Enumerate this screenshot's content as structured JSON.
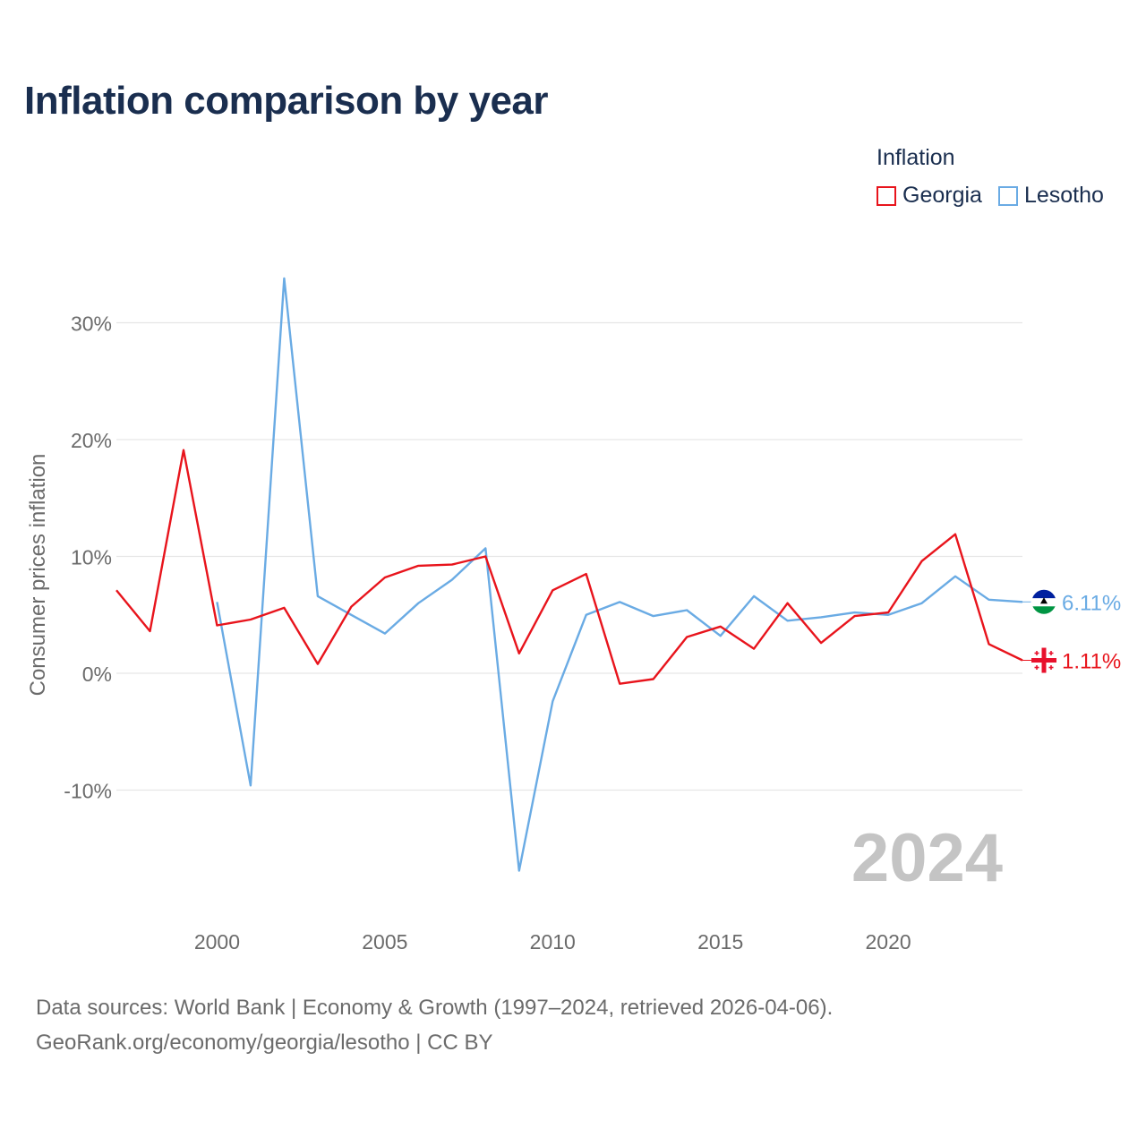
{
  "title": "Inflation comparison by year",
  "legend": {
    "title": "Inflation",
    "items": [
      {
        "label": "Georgia",
        "color": "#e8141c"
      },
      {
        "label": "Lesotho",
        "color": "#6aabe4"
      }
    ]
  },
  "source": {
    "line1": "Data sources: World Bank | Economy & Growth (1997–2024, retrieved 2026-04-06).",
    "line2": "GeoRank.org/economy/georgia/lesotho | CC BY"
  },
  "chart_data": {
    "type": "line",
    "title": "Inflation comparison by year",
    "xlabel": "",
    "ylabel": "Consumer prices inflation",
    "xlim": [
      1997,
      2024
    ],
    "ylim": [
      -19,
      35
    ],
    "x_ticks": [
      2000,
      2005,
      2010,
      2015,
      2020
    ],
    "x_tick_labels": [
      "2000",
      "2005",
      "2010",
      "2015",
      "2020"
    ],
    "y_ticks": [
      -10,
      0,
      10,
      20,
      30
    ],
    "y_tick_labels": [
      "-10%",
      "0%",
      "10%",
      "20%",
      "30%"
    ],
    "grid": true,
    "year_watermark": "2024",
    "series": [
      {
        "name": "Georgia",
        "color": "#e8141c",
        "end_label": "1.11%",
        "flag_icon": "georgia-flag-icon",
        "x": [
          1997,
          1998,
          1999,
          2000,
          2001,
          2002,
          2003,
          2004,
          2005,
          2006,
          2007,
          2008,
          2009,
          2010,
          2011,
          2012,
          2013,
          2014,
          2015,
          2016,
          2017,
          2018,
          2019,
          2020,
          2021,
          2022,
          2023,
          2024
        ],
        "values": [
          7.1,
          3.6,
          19.1,
          4.1,
          4.6,
          5.6,
          0.8,
          5.7,
          8.2,
          9.2,
          9.3,
          10.0,
          1.7,
          7.1,
          8.5,
          -0.9,
          -0.5,
          3.1,
          4.0,
          2.1,
          6.0,
          2.6,
          4.9,
          5.2,
          9.6,
          11.9,
          2.5,
          1.11
        ]
      },
      {
        "name": "Lesotho",
        "color": "#6aabe4",
        "end_label": "6.11%",
        "flag_icon": "lesotho-flag-icon",
        "x": [
          2000,
          2001,
          2002,
          2003,
          2004,
          2005,
          2006,
          2007,
          2008,
          2009,
          2010,
          2011,
          2012,
          2013,
          2014,
          2015,
          2016,
          2017,
          2018,
          2019,
          2020,
          2021,
          2022,
          2023,
          2024
        ],
        "values": [
          6.1,
          -9.6,
          33.8,
          6.6,
          5.0,
          3.4,
          6.0,
          8.0,
          10.7,
          -16.9,
          -2.4,
          5.0,
          6.1,
          4.9,
          5.4,
          3.2,
          6.6,
          4.5,
          4.8,
          5.2,
          5.0,
          6.0,
          8.3,
          6.3,
          6.11
        ]
      }
    ]
  }
}
